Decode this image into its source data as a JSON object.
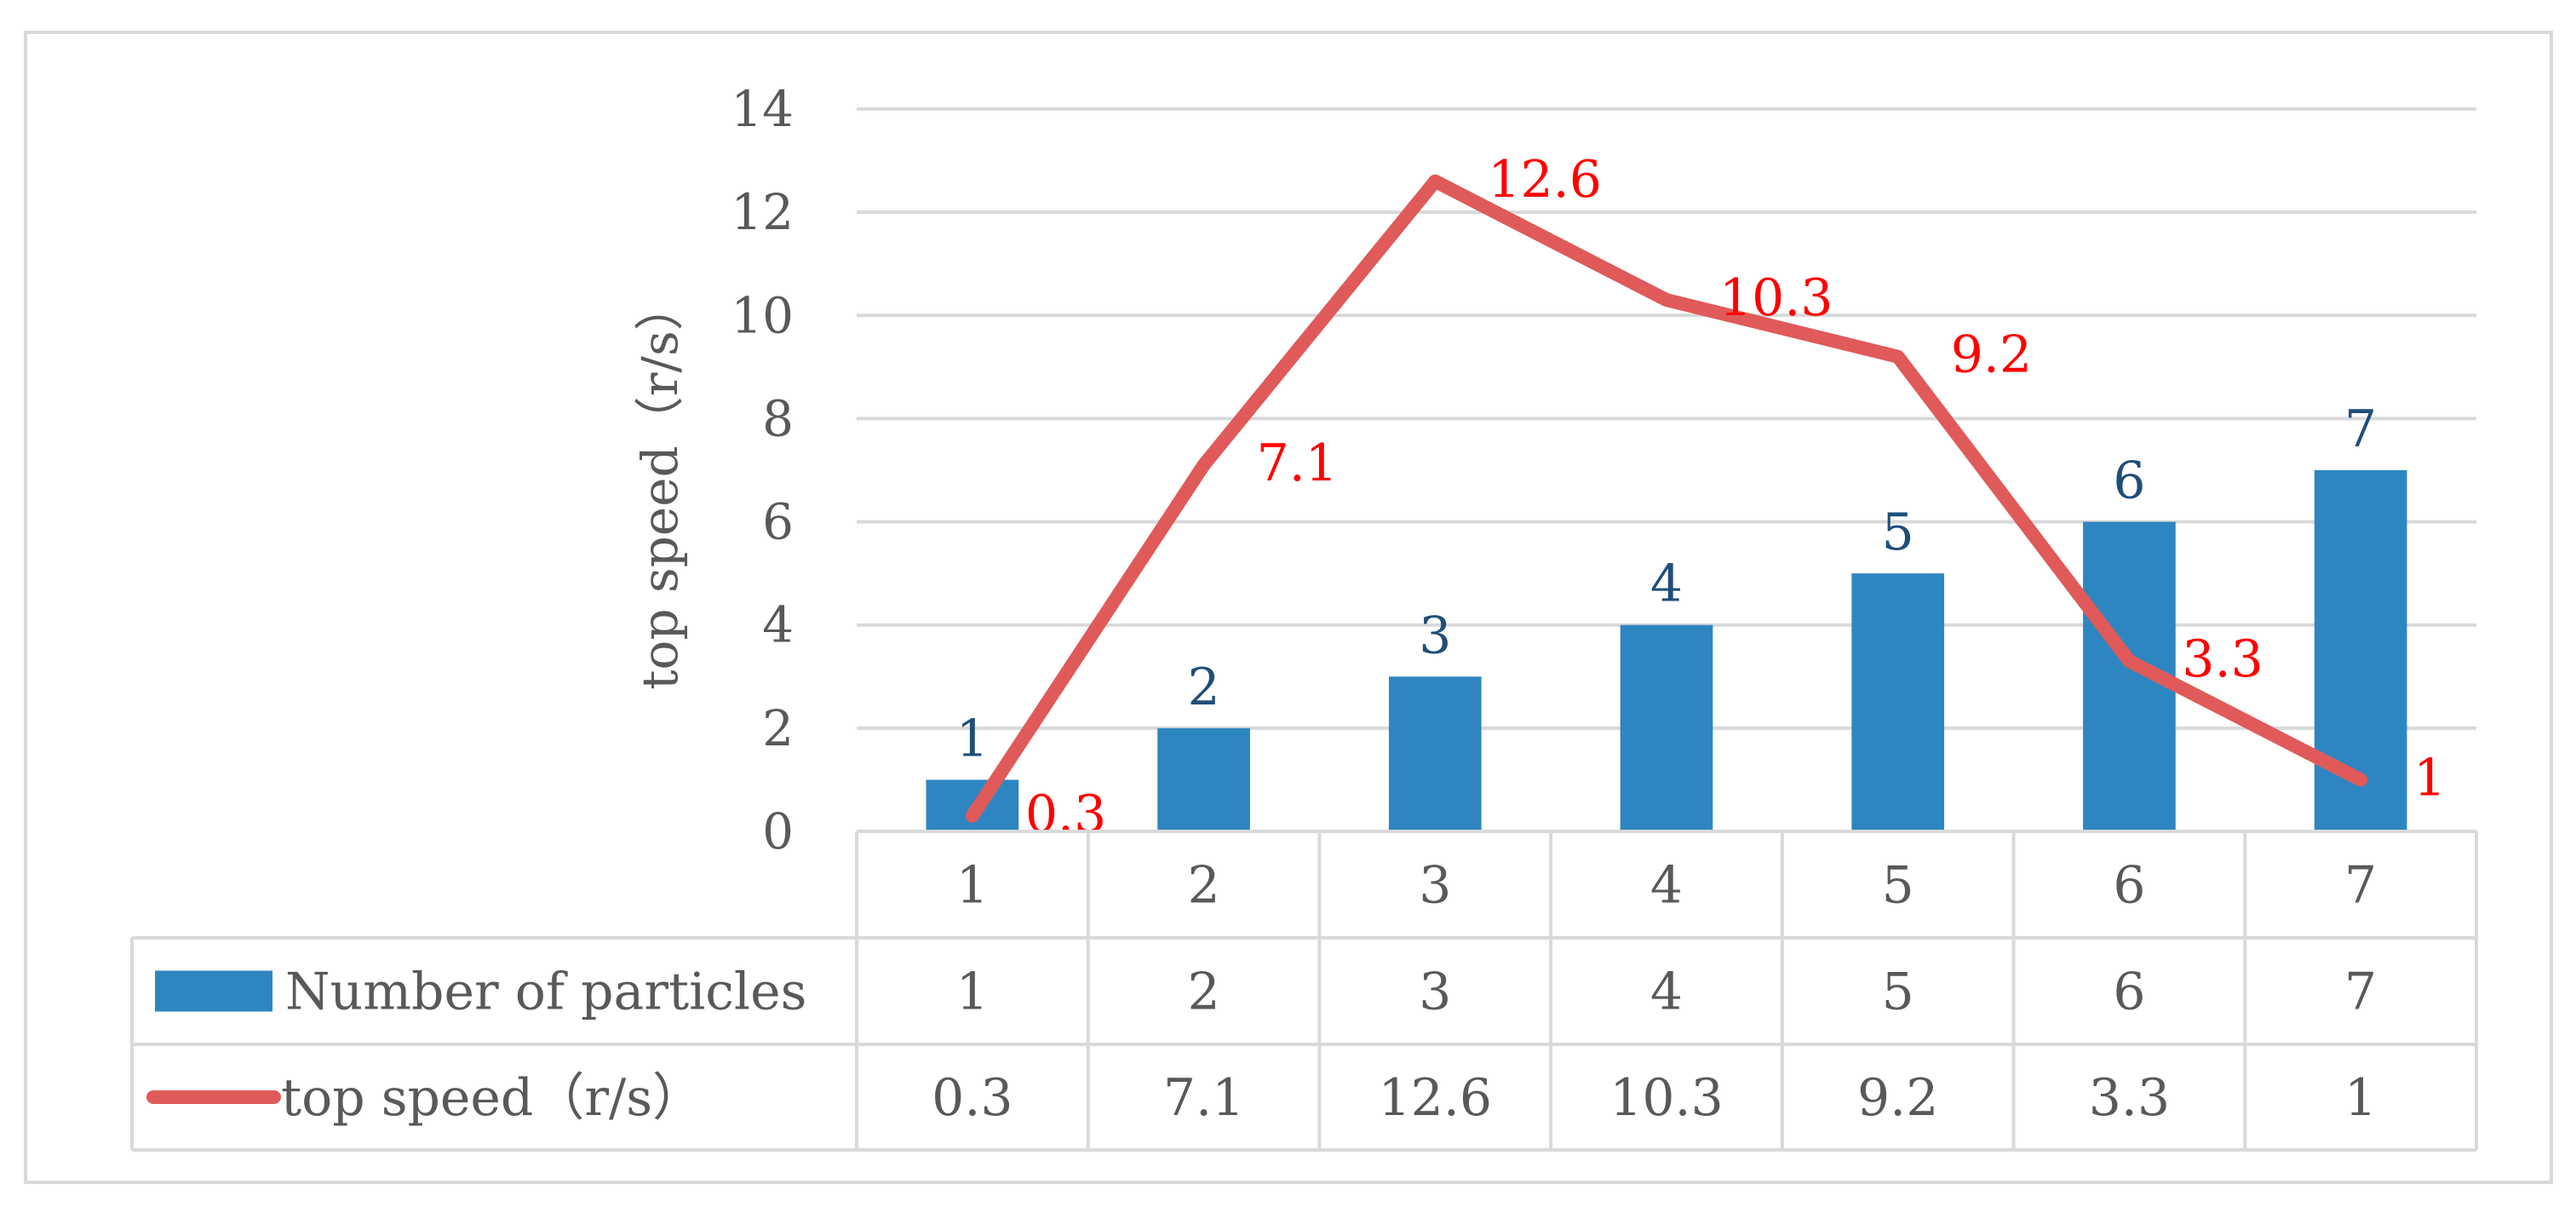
{
  "chart_data": {
    "type": "bar+line",
    "categories": [
      "1",
      "2",
      "3",
      "4",
      "5",
      "6",
      "7"
    ],
    "series": [
      {
        "name": "Number of particles",
        "type": "bar",
        "color": "#2E86C1",
        "values": [
          1,
          2,
          3,
          4,
          5,
          6,
          7
        ],
        "labels": [
          "1",
          "2",
          "3",
          "4",
          "5",
          "6",
          "7"
        ],
        "label_color": "#1F4E79"
      },
      {
        "name": "top speed（r/s）",
        "type": "line",
        "color": "#E05A5A",
        "values": [
          0.3,
          7.1,
          12.6,
          10.3,
          9.2,
          3.3,
          1
        ],
        "labels": [
          "0.3",
          "7.1",
          "12.6",
          "10.3",
          "9.2",
          "3.3",
          "1"
        ],
        "label_color": "#FF0000"
      }
    ],
    "ylabel": "top speed（r/s）",
    "ylim": [
      0,
      14
    ],
    "yticks": [
      "0",
      "2",
      "4",
      "6",
      "8",
      "10",
      "12",
      "14"
    ],
    "grid": true,
    "legend": "data-table",
    "data_table": {
      "rows": [
        [
          "1",
          "2",
          "3",
          "4",
          "5",
          "6",
          "7"
        ],
        [
          "1",
          "2",
          "3",
          "4",
          "5",
          "6",
          "7"
        ],
        [
          "0.3",
          "7.1",
          "12.6",
          "10.3",
          "9.2",
          "3.3",
          "1"
        ]
      ]
    }
  }
}
